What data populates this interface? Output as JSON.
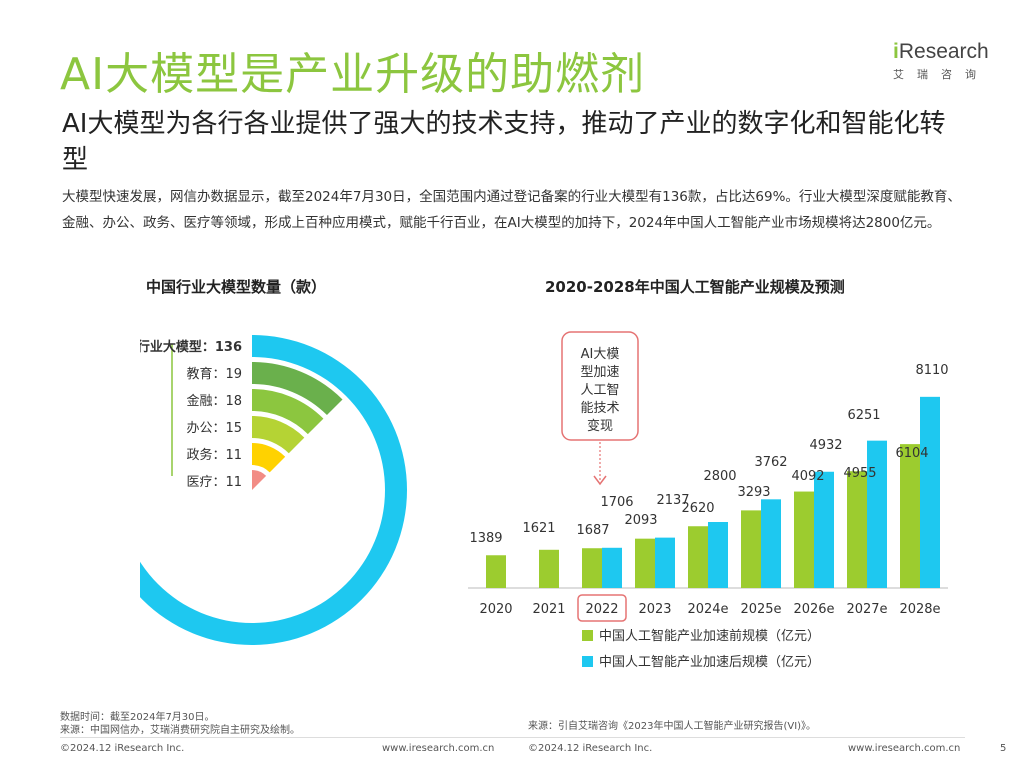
{
  "page": {
    "title": "AI大模型是产业升级的助燃剂",
    "subtitle": "AI大模型为各行各业提供了强大的技术支持，推动了产业的数字化和智能化转型",
    "description": "大模型快速发展，网信办数据显示，截至2024年7月30日，全国范围内通过登记备案的行业大模型有136款，占比达69%。行业大模型深度赋能教育、金融、办公、政务、医疗等领域，形成上百种应用模式，赋能千行百业，在AI大模型的加持下，2024年中国人工智能产业市场规模将达2800亿元。",
    "logo": {
      "brand_i": "i",
      "brand_rest": "Research",
      "sub": "艾瑞咨询"
    },
    "colors": {
      "accent": "#8cc63f",
      "cyan": "#1ec8f0",
      "green": "#9ccc2f"
    }
  },
  "chart_data": [
    {
      "type": "radial-bar",
      "title": "中国行业大模型数量（款）",
      "unit": "款",
      "items": [
        {
          "label": "行业大模型",
          "sep": "：",
          "value": 136,
          "color": "#1ec8f0",
          "bold": true
        },
        {
          "label": "教育",
          "sep": "：",
          "value": 19,
          "color": "#6ab04c"
        },
        {
          "label": "金融",
          "sep": "：",
          "value": 18,
          "color": "#8cc63f"
        },
        {
          "label": "办公",
          "sep": "：",
          "value": 15,
          "color": "#b5d334"
        },
        {
          "label": "政务",
          "sep": "：",
          "value": 11,
          "color": "#ffd200"
        },
        {
          "label": "医疗",
          "sep": "：",
          "value": 11,
          "color": "#f28c85"
        }
      ]
    },
    {
      "type": "bar",
      "title": "2020-2028年中国人工智能产业规模及预测",
      "categories": [
        "2020",
        "2021",
        "2022",
        "2023",
        "2024e",
        "2025e",
        "2026e",
        "2027e",
        "2028e"
      ],
      "highlight_category": "2022",
      "series": [
        {
          "name": "中国人工智能产业加速前规模（亿元）",
          "color": "#9ccc2f",
          "values": [
            1389,
            1621,
            1687,
            2093,
            2620,
            3293,
            4092,
            4955,
            6104
          ]
        },
        {
          "name": "中国人工智能产业加速后规模（亿元）",
          "color": "#1ec8f0",
          "values": [
            null,
            null,
            1706,
            2137,
            2800,
            3762,
            4932,
            6251,
            8110
          ]
        }
      ],
      "annotation": {
        "text": "AI大模型加速人工智能技术变现",
        "lines": [
          "AI大模",
          "型加速",
          "人工智",
          "能技术",
          "变现"
        ]
      }
    }
  ],
  "footer": {
    "note_left_1": "数据时间：截至2024年7月30日。",
    "note_left_2": "来源：中国网信办，艾瑞消费研究院自主研究及绘制。",
    "note_right": "来源：引自艾瑞咨询《2023年中国人工智能产业研究报告(VI)》。",
    "copyright": "©2024.12 iResearch Inc.",
    "url": "www.iresearch.com.cn",
    "page_number": "5"
  }
}
